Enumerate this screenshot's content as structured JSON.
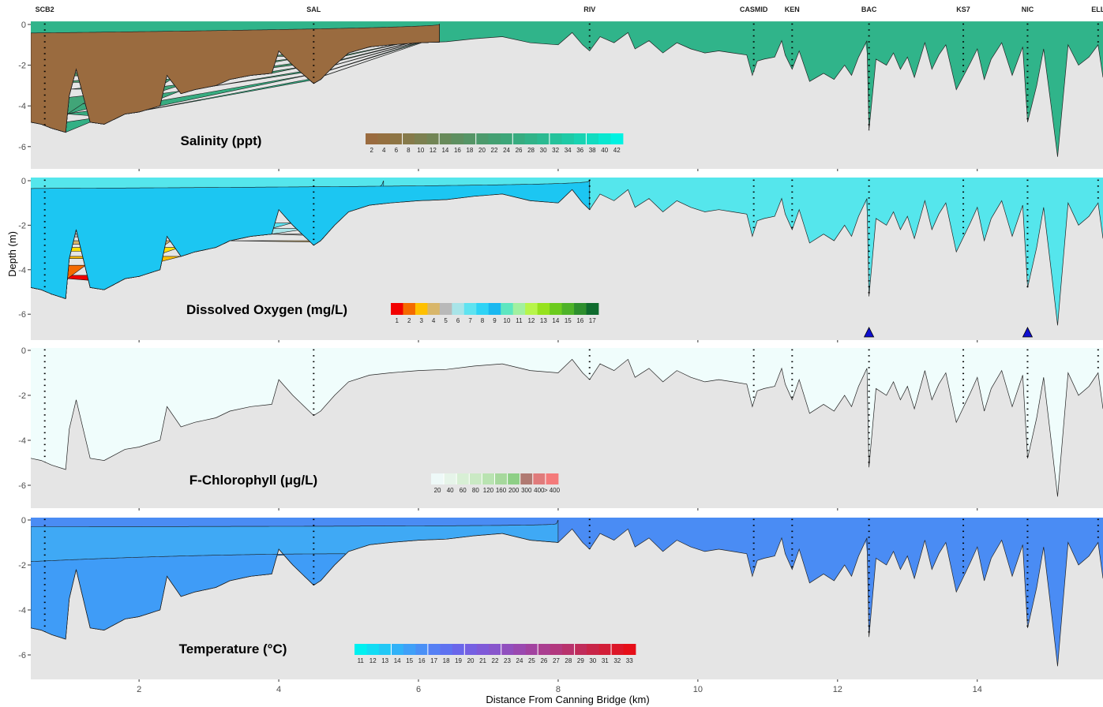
{
  "chart_data": {
    "type": "area",
    "xlabel": "Distance From Canning Bridge (km)",
    "ylabel": "Depth (m)",
    "xlim": [
      0.45,
      15.8
    ],
    "ylim": [
      -7,
      0.2
    ],
    "x_ticks": [
      2,
      4,
      6,
      8,
      10,
      12,
      14
    ],
    "y_ticks": [
      0,
      -2,
      -4,
      -6
    ],
    "sites": [
      {
        "name": "SCB2",
        "x": 0.65
      },
      {
        "name": "SAL",
        "x": 4.5
      },
      {
        "name": "RIV",
        "x": 8.45
      },
      {
        "name": "CASMID",
        "x": 10.8
      },
      {
        "name": "KEN",
        "x": 11.35
      },
      {
        "name": "BAC",
        "x": 12.45
      },
      {
        "name": "KS7",
        "x": 13.8
      },
      {
        "name": "NIC",
        "x": 14.72
      },
      {
        "name": "ELL",
        "x": 15.73
      }
    ],
    "bottom_profile": {
      "x": [
        0.45,
        0.6,
        0.75,
        0.95,
        1.0,
        1.1,
        1.3,
        1.5,
        1.8,
        2.0,
        2.3,
        2.4,
        2.6,
        2.8,
        3.1,
        3.3,
        3.6,
        3.9,
        4.0,
        4.2,
        4.5,
        4.6,
        4.8,
        5.0,
        5.3,
        5.6,
        6.0,
        6.4,
        6.8,
        7.2,
        7.6,
        8.0,
        8.2,
        8.35,
        8.45,
        8.6,
        8.8,
        9.0,
        9.1,
        9.3,
        9.5,
        9.7,
        9.9,
        10.1,
        10.3,
        10.5,
        10.7,
        10.78,
        10.85,
        10.95,
        11.1,
        11.2,
        11.25,
        11.35,
        11.45,
        11.6,
        11.8,
        11.95,
        12.1,
        12.2,
        12.3,
        12.42,
        12.45,
        12.55,
        12.7,
        12.8,
        12.9,
        13.0,
        13.1,
        13.25,
        13.35,
        13.45,
        13.55,
        13.7,
        13.9,
        14.0,
        14.1,
        14.2,
        14.35,
        14.5,
        14.65,
        14.72,
        14.85,
        14.95,
        15.05,
        15.15,
        15.3,
        15.45,
        15.6,
        15.73,
        15.8
      ],
      "y": [
        -4.8,
        -4.9,
        -5.1,
        -5.3,
        -3.5,
        -2.2,
        -4.8,
        -4.9,
        -4.4,
        -4.3,
        -4.0,
        -2.5,
        -3.4,
        -3.2,
        -3.0,
        -2.7,
        -2.5,
        -2.4,
        -1.3,
        -2.0,
        -2.9,
        -2.7,
        -2.0,
        -1.4,
        -1.1,
        -1.0,
        -0.9,
        -0.85,
        -0.7,
        -0.6,
        -0.9,
        -1.0,
        -0.4,
        -1.0,
        -1.3,
        -0.6,
        -0.9,
        -0.4,
        -1.2,
        -0.8,
        -1.4,
        -0.9,
        -1.2,
        -1.4,
        -1.3,
        -1.4,
        -1.5,
        -2.5,
        -1.8,
        -1.7,
        -1.6,
        -0.8,
        -1.5,
        -2.2,
        -1.3,
        -2.8,
        -2.4,
        -2.7,
        -2.0,
        -2.5,
        -1.6,
        -0.8,
        -5.2,
        -1.7,
        -2.0,
        -1.4,
        -2.2,
        -1.6,
        -2.6,
        -0.9,
        -2.2,
        -1.5,
        -1.0,
        -3.2,
        -1.9,
        -1.2,
        -2.7,
        -1.7,
        -0.9,
        -2.5,
        -1.1,
        -4.8,
        -3.0,
        -1.2,
        -3.8,
        -6.5,
        -1.0,
        -2.0,
        -1.6,
        -1.0,
        -2.6
      ]
    },
    "panels": [
      {
        "title": "Salinity (ppt)",
        "legend_labels": [
          "2",
          "4",
          "6",
          "8",
          "10",
          "12",
          "14",
          "16",
          "18",
          "20",
          "22",
          "24",
          "26",
          "28",
          "30",
          "32",
          "34",
          "36",
          "38",
          "40",
          "42"
        ],
        "legend_colors": [
          "#9A6B3F",
          "#957040",
          "#8E7545",
          "#867A4A",
          "#7C8050",
          "#728555",
          "#688A5A",
          "#5E8F60",
          "#559566",
          "#4C9A6C",
          "#44A072",
          "#3DA679",
          "#37AC80",
          "#31B388",
          "#2BBA91",
          "#25C29B",
          "#1FCAA6",
          "#19D3B2",
          "#12DCC0",
          "#0AE7D0",
          "#00F2E2"
        ],
        "fill_colors": [
          "#9A6B3F",
          "#8B7848",
          "#7B8050",
          "#6B8757",
          "#5F8E5F",
          "#569566",
          "#4E9A6C",
          "#479F72",
          "#41A578",
          "#3BAA7E",
          "#37AC80",
          "#33B085",
          "#30B48A"
        ]
      },
      {
        "title": "Dissolved Oxygen (mg/L)",
        "legend_labels": [
          "1",
          "2",
          "3",
          "4",
          "5",
          "6",
          "7",
          "8",
          "9",
          "10",
          "11",
          "12",
          "13",
          "14",
          "15",
          "16",
          "17"
        ],
        "legend_colors": [
          "#F20000",
          "#F46A00",
          "#FFC000",
          "#D8B66A",
          "#B9B9B9",
          "#A8E4E8",
          "#5FE3F0",
          "#2FD3F5",
          "#1AB8F0",
          "#5EE6C0",
          "#A2F0A0",
          "#B7F54A",
          "#96E21E",
          "#6CCB1E",
          "#4EB228",
          "#2E8F2E",
          "#0F6B2E"
        ],
        "fill_colors": [
          "#F20000",
          "#F46A00",
          "#FFC000",
          "#FFE000",
          "#D8B66A",
          "#B9B9B9",
          "#A8E4E8",
          "#5FE3F0",
          "#2FD3F5",
          "#1CC6F2",
          "#55E6EC"
        ],
        "markers": [
          {
            "x": 12.45,
            "shape": "triangle"
          },
          {
            "x": 14.72,
            "shape": "triangle"
          }
        ]
      },
      {
        "title": "F-Chlorophyll (μg/L)",
        "legend_labels": [
          "20",
          "40",
          "60",
          "80",
          "120",
          "160",
          "200",
          "300",
          "400",
          "> 400"
        ],
        "legend_colors": [
          "#EEF9F8",
          "#E6F4E9",
          "#D8EFD5",
          "#CAE9C4",
          "#B9E3B1",
          "#A6D89C",
          "#8ECF86",
          "#B07A72",
          "#E07B7B",
          "#F47A7A"
        ],
        "fill_colors": [
          "#F0FDFC"
        ]
      },
      {
        "title": "Temperature (°C)",
        "legend_labels": [
          "11",
          "12",
          "13",
          "14",
          "15",
          "16",
          "17",
          "18",
          "19",
          "20",
          "21",
          "22",
          "23",
          "24",
          "25",
          "26",
          "27",
          "28",
          "29",
          "30",
          "31",
          "32",
          "33"
        ],
        "legend_colors": [
          "#00F0F0",
          "#12DCF4",
          "#22C8F6",
          "#31B2F8",
          "#3FA0F8",
          "#4A90F6",
          "#5580F4",
          "#5F72F0",
          "#6A66EA",
          "#7560E2",
          "#7F5AD8",
          "#8856CC",
          "#914FBE",
          "#9A49B0",
          "#A243A0",
          "#AA3E90",
          "#B2387E",
          "#B8326C",
          "#C02C5A",
          "#C82548",
          "#D21E38",
          "#DC1628",
          "#E60E18"
        ],
        "fill_colors": [
          "#3FA9F5",
          "#3F9CF7",
          "#4A8CF4"
        ]
      }
    ]
  }
}
